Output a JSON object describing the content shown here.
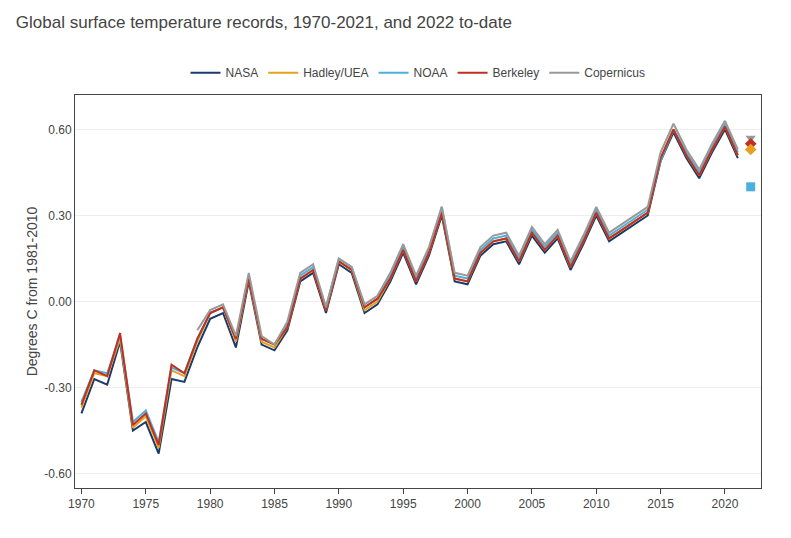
{
  "chart_data": {
    "type": "line",
    "title": "Global surface temperature records, 1970-2021, and 2022 to-date",
    "ylabel": "Degrees C from 1981-2010",
    "xlim": [
      1969.5,
      2022.8
    ],
    "ylim": [
      -0.65,
      0.72
    ],
    "xticks": [
      1970,
      1975,
      1980,
      1985,
      1990,
      1995,
      2000,
      2005,
      2010,
      2015,
      2020
    ],
    "yticks": [
      {
        "value": -0.6,
        "label": "-0.60"
      },
      {
        "value": -0.3,
        "label": "-0.30"
      },
      {
        "value": 0,
        "label": "0.00"
      },
      {
        "value": 0.3,
        "label": "0.30"
      },
      {
        "value": 0.6,
        "label": "0.60"
      }
    ],
    "grid": "y",
    "legend": "top",
    "series": [
      {
        "name": "NASA",
        "color": "#1a3a6b",
        "type": "line",
        "x": [
          1970,
          1971,
          1972,
          1973,
          1974,
          1975,
          1976,
          1977,
          1978,
          1979,
          1980,
          1981,
          1982,
          1983,
          1984,
          1985,
          1986,
          1987,
          1988,
          1989,
          1990,
          1991,
          1992,
          1993,
          1994,
          1995,
          1996,
          1997,
          1998,
          1999,
          2000,
          2001,
          2002,
          2003,
          2004,
          2005,
          2006,
          2007,
          2008,
          2009,
          2010,
          2011,
          2012,
          2013,
          2014,
          2015,
          2016,
          2017,
          2018,
          2019,
          2020,
          2021
        ],
        "values": [
          -0.39,
          -0.27,
          -0.29,
          -0.14,
          -0.45,
          -0.42,
          -0.53,
          -0.27,
          -0.28,
          -0.16,
          -0.06,
          -0.04,
          -0.16,
          0.07,
          -0.15,
          -0.17,
          -0.1,
          0.07,
          0.1,
          -0.04,
          0.13,
          0.1,
          -0.04,
          -0.01,
          0.07,
          0.17,
          0.06,
          0.16,
          0.3,
          0.07,
          0.06,
          0.16,
          0.2,
          0.21,
          0.13,
          0.23,
          0.17,
          0.22,
          0.11,
          0.2,
          0.3,
          0.21,
          0.24,
          0.27,
          0.3,
          0.49,
          0.59,
          0.5,
          0.43,
          0.52,
          0.6,
          0.5
        ]
      },
      {
        "name": "Hadley/UEA",
        "color": "#e8a020",
        "type": "line",
        "x": [
          1970,
          1971,
          1972,
          1973,
          1974,
          1975,
          1976,
          1977,
          1978,
          1979,
          1980,
          1981,
          1982,
          1983,
          1984,
          1985,
          1986,
          1987,
          1988,
          1989,
          1990,
          1991,
          1992,
          1993,
          1994,
          1995,
          1996,
          1997,
          1998,
          1999,
          2000,
          2001,
          2002,
          2003,
          2004,
          2005,
          2006,
          2007,
          2008,
          2009,
          2010,
          2011,
          2012,
          2013,
          2014,
          2015,
          2016,
          2017,
          2018,
          2019,
          2020,
          2021
        ],
        "values": [
          -0.37,
          -0.25,
          -0.26,
          -0.13,
          -0.44,
          -0.4,
          -0.51,
          -0.24,
          -0.26,
          -0.14,
          -0.04,
          -0.02,
          -0.14,
          0.08,
          -0.14,
          -0.16,
          -0.09,
          0.08,
          0.11,
          -0.03,
          0.14,
          0.11,
          -0.03,
          0.0,
          0.08,
          0.18,
          0.07,
          0.17,
          0.31,
          0.08,
          0.07,
          0.17,
          0.21,
          0.22,
          0.14,
          0.24,
          0.18,
          0.23,
          0.12,
          0.21,
          0.31,
          0.22,
          0.25,
          0.28,
          0.31,
          0.5,
          0.6,
          0.51,
          0.44,
          0.53,
          0.61,
          0.51
        ]
      },
      {
        "name": "NOAA",
        "color": "#4bb0e0",
        "type": "line",
        "x": [
          1970,
          1971,
          1972,
          1973,
          1974,
          1975,
          1976,
          1977,
          1978,
          1979,
          1980,
          1981,
          1982,
          1983,
          1984,
          1985,
          1986,
          1987,
          1988,
          1989,
          1990,
          1991,
          1992,
          1993,
          1994,
          1995,
          1996,
          1997,
          1998,
          1999,
          2000,
          2001,
          2002,
          2003,
          2004,
          2005,
          2006,
          2007,
          2008,
          2009,
          2010,
          2011,
          2012,
          2013,
          2014,
          2015,
          2016,
          2017,
          2018,
          2019,
          2020,
          2021
        ],
        "values": [
          -0.35,
          -0.24,
          -0.25,
          -0.12,
          -0.42,
          -0.38,
          -0.49,
          -0.23,
          -0.25,
          -0.13,
          -0.04,
          -0.02,
          -0.13,
          0.09,
          -0.13,
          -0.15,
          -0.08,
          0.09,
          0.12,
          -0.02,
          0.15,
          0.12,
          -0.02,
          0.01,
          0.09,
          0.19,
          0.08,
          0.18,
          0.33,
          0.09,
          0.08,
          0.18,
          0.22,
          0.23,
          0.15,
          0.25,
          0.19,
          0.24,
          0.13,
          0.22,
          0.32,
          0.23,
          0.26,
          0.29,
          0.32,
          0.49,
          0.6,
          0.52,
          0.45,
          0.54,
          0.62,
          0.52
        ]
      },
      {
        "name": "Berkeley",
        "color": "#c03020",
        "type": "line",
        "x": [
          1970,
          1971,
          1972,
          1973,
          1974,
          1975,
          1976,
          1977,
          1978,
          1979,
          1980,
          1981,
          1982,
          1983,
          1984,
          1985,
          1986,
          1987,
          1988,
          1989,
          1990,
          1991,
          1992,
          1993,
          1994,
          1995,
          1996,
          1997,
          1998,
          1999,
          2000,
          2001,
          2002,
          2003,
          2004,
          2005,
          2006,
          2007,
          2008,
          2009,
          2010,
          2011,
          2012,
          2013,
          2014,
          2015,
          2016,
          2017,
          2018,
          2019,
          2020,
          2021
        ],
        "values": [
          -0.36,
          -0.24,
          -0.26,
          -0.11,
          -0.43,
          -0.39,
          -0.5,
          -0.22,
          -0.25,
          -0.13,
          -0.04,
          -0.02,
          -0.13,
          0.08,
          -0.13,
          -0.15,
          -0.09,
          0.08,
          0.11,
          -0.03,
          0.14,
          0.11,
          -0.02,
          0.01,
          0.08,
          0.18,
          0.07,
          0.17,
          0.31,
          0.08,
          0.07,
          0.17,
          0.21,
          0.22,
          0.14,
          0.24,
          0.18,
          0.23,
          0.12,
          0.21,
          0.31,
          0.22,
          0.25,
          0.28,
          0.31,
          0.5,
          0.6,
          0.51,
          0.44,
          0.53,
          0.61,
          0.51
        ]
      },
      {
        "name": "Copernicus",
        "color": "#999999",
        "type": "line",
        "x": [
          1979,
          1980,
          1981,
          1982,
          1983,
          1984,
          1985,
          1986,
          1987,
          1988,
          1989,
          1990,
          1991,
          1992,
          1993,
          1994,
          1995,
          1996,
          1997,
          1998,
          1999,
          2000,
          2001,
          2002,
          2003,
          2004,
          2005,
          2006,
          2007,
          2008,
          2009,
          2010,
          2011,
          2012,
          2013,
          2014,
          2015,
          2016,
          2017,
          2018,
          2019,
          2020,
          2021
        ],
        "values": [
          -0.1,
          -0.03,
          -0.01,
          -0.12,
          0.1,
          -0.12,
          -0.15,
          -0.07,
          0.1,
          0.13,
          -0.02,
          0.15,
          0.12,
          -0.01,
          0.02,
          0.1,
          0.2,
          0.09,
          0.19,
          0.33,
          0.1,
          0.09,
          0.19,
          0.23,
          0.24,
          0.16,
          0.26,
          0.2,
          0.25,
          0.14,
          0.23,
          0.33,
          0.24,
          0.27,
          0.3,
          0.33,
          0.52,
          0.62,
          0.53,
          0.46,
          0.55,
          0.63,
          0.53
        ]
      },
      {
        "type": "scatter",
        "marker": "triangle-down",
        "color": "#999999",
        "x": [
          2022
        ],
        "values": [
          0.57
        ]
      },
      {
        "type": "scatter",
        "marker": "diamond",
        "color": "#c03020",
        "x": [
          2022
        ],
        "values": [
          0.55
        ]
      },
      {
        "type": "scatter",
        "marker": "diamond",
        "color": "#e8a020",
        "x": [
          2022
        ],
        "values": [
          0.53
        ]
      },
      {
        "type": "scatter",
        "marker": "square",
        "color": "#4bb0e0",
        "x": [
          2022
        ],
        "values": [
          0.4
        ]
      }
    ]
  }
}
